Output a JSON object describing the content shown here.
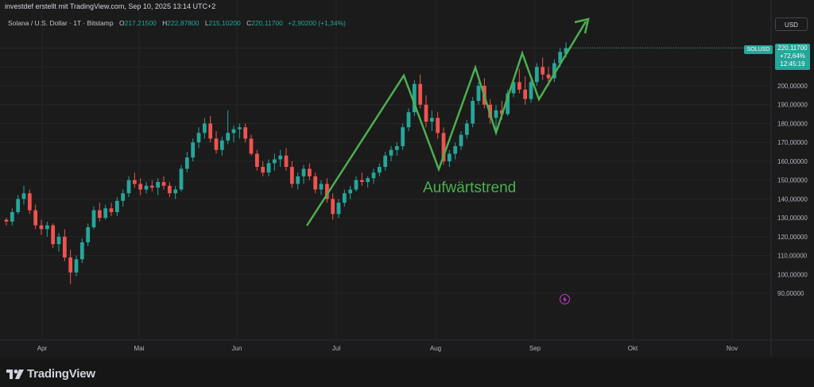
{
  "header": {
    "author_line": "investdef erstellt mit TradingView.com, Sep 10, 2025 13:14 UTC+2"
  },
  "legend": {
    "symbol": "Solana / U.S. Dollar · 1T · Bitstamp",
    "open_label": "O",
    "open_value": "217,21500",
    "high_label": "H",
    "high_value": "222,87800",
    "low_label": "L",
    "low_value": "215,10200",
    "close_label": "C",
    "close_value": "220,11700",
    "change": "+2,90200 (+1,34%)"
  },
  "currency_button": "USD",
  "price_label": {
    "symbol": "SOLUSD",
    "price": "220,11700",
    "change_pct": "+72,64%",
    "countdown": "12:45:19"
  },
  "annotation": {
    "text": "Aufwärtstrend"
  },
  "branding": {
    "name": "TradingView"
  },
  "icons": {
    "logo": "tradingview-logo",
    "alert": "lightning-icon"
  },
  "colors": {
    "up": "#26a69a",
    "down": "#ef5350",
    "trend": "#4caf50",
    "background": "#1b1b1b"
  },
  "chart_data": {
    "type": "candlestick",
    "y_ticks": [
      "200,00000",
      "190,00000",
      "180,00000",
      "170,00000",
      "160,00000",
      "150,00000",
      "140,00000",
      "130,00000",
      "120,00000",
      "110,00000",
      "100,00000",
      "90,00000"
    ],
    "x_ticks": [
      "Apr",
      "Mai",
      "Jun",
      "Jul",
      "Aug",
      "Sep",
      "Okt",
      "Nov"
    ],
    "ylim": [
      85,
      225
    ],
    "candles_ohlc": [
      [
        129,
        130,
        126,
        128
      ],
      [
        128,
        135,
        126,
        133
      ],
      [
        133,
        142,
        132,
        140
      ],
      [
        140,
        147,
        137,
        143
      ],
      [
        143,
        145,
        132,
        134
      ],
      [
        134,
        137,
        124,
        126
      ],
      [
        126,
        129,
        121,
        124
      ],
      [
        124,
        128,
        120,
        126
      ],
      [
        126,
        127,
        114,
        116
      ],
      [
        116,
        122,
        112,
        120
      ],
      [
        120,
        124,
        107,
        109
      ],
      [
        109,
        113,
        95,
        101
      ],
      [
        101,
        110,
        99,
        108
      ],
      [
        108,
        119,
        106,
        117
      ],
      [
        117,
        127,
        115,
        125
      ],
      [
        125,
        136,
        124,
        134
      ],
      [
        134,
        138,
        128,
        130
      ],
      [
        130,
        137,
        129,
        135
      ],
      [
        135,
        138,
        131,
        133
      ],
      [
        133,
        141,
        131,
        139
      ],
      [
        139,
        145,
        136,
        143
      ],
      [
        143,
        152,
        141,
        150
      ],
      [
        150,
        154,
        146,
        148
      ],
      [
        148,
        151,
        142,
        145
      ],
      [
        145,
        149,
        143,
        147
      ],
      [
        147,
        150,
        144,
        146
      ],
      [
        146,
        151,
        142,
        149
      ],
      [
        149,
        152,
        145,
        147
      ],
      [
        147,
        149,
        141,
        143
      ],
      [
        143,
        147,
        140,
        145
      ],
      [
        145,
        158,
        144,
        156
      ],
      [
        156,
        165,
        154,
        162
      ],
      [
        162,
        172,
        160,
        170
      ],
      [
        170,
        178,
        167,
        175
      ],
      [
        175,
        183,
        172,
        180
      ],
      [
        180,
        184,
        170,
        172
      ],
      [
        172,
        176,
        164,
        166
      ],
      [
        166,
        173,
        163,
        171
      ],
      [
        171,
        187,
        169,
        175
      ],
      [
        175,
        179,
        170,
        177
      ],
      [
        177,
        180,
        172,
        178
      ],
      [
        178,
        180,
        170,
        172
      ],
      [
        172,
        174,
        163,
        164
      ],
      [
        164,
        166,
        155,
        157
      ],
      [
        157,
        160,
        152,
        154
      ],
      [
        154,
        161,
        152,
        159
      ],
      [
        159,
        164,
        155,
        161
      ],
      [
        161,
        166,
        157,
        163
      ],
      [
        163,
        167,
        155,
        157
      ],
      [
        157,
        160,
        146,
        148
      ],
      [
        148,
        154,
        145,
        152
      ],
      [
        152,
        158,
        148,
        156
      ],
      [
        156,
        159,
        150,
        152
      ],
      [
        152,
        154,
        143,
        145
      ],
      [
        145,
        150,
        142,
        148
      ],
      [
        148,
        151,
        138,
        140
      ],
      [
        140,
        143,
        129,
        132
      ],
      [
        132,
        140,
        130,
        138
      ],
      [
        138,
        145,
        136,
        143
      ],
      [
        143,
        147,
        140,
        145
      ],
      [
        145,
        152,
        144,
        150
      ],
      [
        150,
        154,
        147,
        149
      ],
      [
        149,
        152,
        146,
        151
      ],
      [
        151,
        156,
        148,
        154
      ],
      [
        154,
        159,
        152,
        157
      ],
      [
        157,
        165,
        155,
        163
      ],
      [
        163,
        168,
        160,
        166
      ],
      [
        166,
        170,
        163,
        168
      ],
      [
        168,
        180,
        166,
        178
      ],
      [
        178,
        188,
        176,
        186
      ],
      [
        186,
        203,
        184,
        201
      ],
      [
        201,
        206,
        188,
        190
      ],
      [
        190,
        195,
        178,
        181
      ],
      [
        181,
        187,
        176,
        183
      ],
      [
        183,
        186,
        172,
        175
      ],
      [
        175,
        178,
        158,
        160
      ],
      [
        160,
        166,
        157,
        164
      ],
      [
        164,
        170,
        161,
        168
      ],
      [
        168,
        176,
        166,
        174
      ],
      [
        174,
        182,
        172,
        180
      ],
      [
        180,
        194,
        178,
        192
      ],
      [
        192,
        202,
        190,
        200
      ],
      [
        200,
        204,
        188,
        190
      ],
      [
        190,
        193,
        180,
        183
      ],
      [
        183,
        190,
        177,
        187
      ],
      [
        187,
        192,
        182,
        185
      ],
      [
        185,
        198,
        184,
        196
      ],
      [
        196,
        204,
        194,
        202
      ],
      [
        202,
        209,
        196,
        198
      ],
      [
        198,
        205,
        190,
        193
      ],
      [
        193,
        204,
        191,
        202
      ],
      [
        202,
        212,
        200,
        210
      ],
      [
        210,
        215,
        203,
        206
      ],
      [
        206,
        210,
        200,
        204
      ],
      [
        204,
        214,
        202,
        212
      ],
      [
        212,
        220,
        210,
        218
      ],
      [
        217,
        223,
        215,
        220
      ]
    ],
    "trend_lines": [
      [
        [
          127,
          "low"
        ],
        [
          205,
          "high"
        ],
        [
          155,
          "low"
        ],
        [
          210,
          "high"
        ],
        [
          174,
          "low"
        ],
        [
          219,
          "high"
        ],
        [
          193,
          "low"
        ],
        [
          235,
          "arrow"
        ]
      ]
    ]
  }
}
